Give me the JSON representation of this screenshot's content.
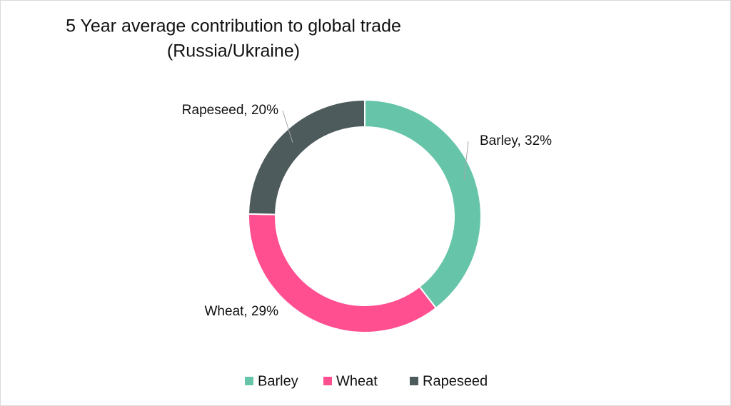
{
  "chart_data": {
    "type": "donut",
    "title": "5 Year average contribution to global trade",
    "subtitle": "(Russia/Ukraine)",
    "categories": [
      "Barley",
      "Wheat",
      "Rapeseed"
    ],
    "values": [
      32,
      29,
      20
    ],
    "value_labels": [
      "Barley, 32%",
      "Wheat, 29%",
      "Rapeseed, 20%"
    ],
    "colors": [
      "#66c5a8",
      "#ff4f91",
      "#4d5b5c"
    ],
    "legend": "bottom"
  }
}
